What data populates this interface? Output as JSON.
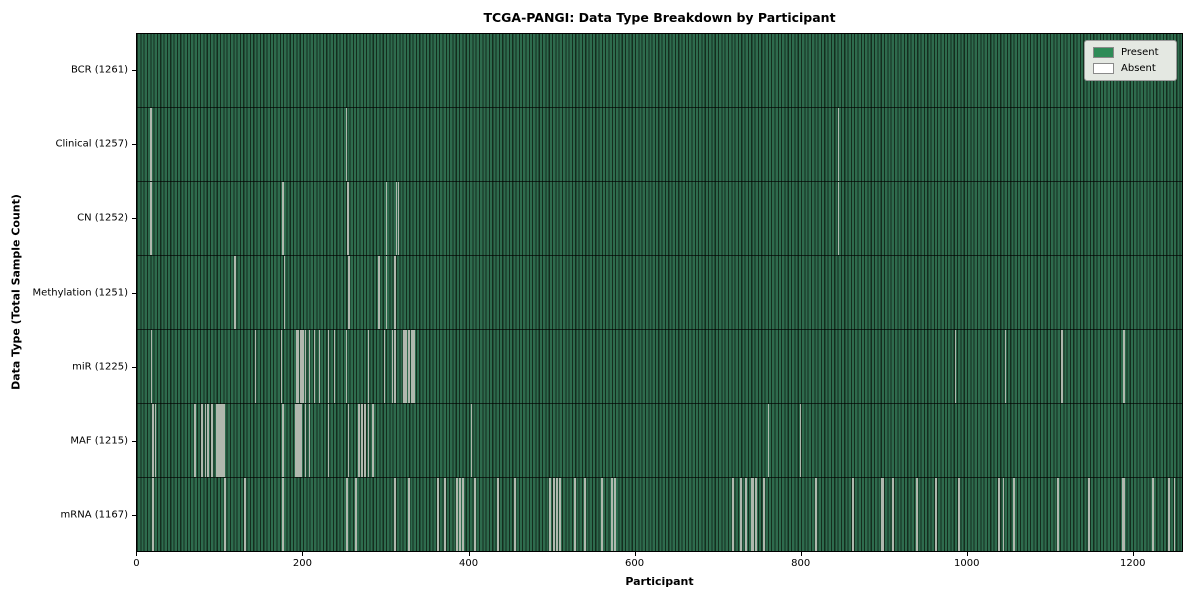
{
  "chart_data": {
    "type": "heatmap",
    "title": "TCGA-PANGI: Data Type Breakdown by Participant",
    "xlabel": "Participant",
    "ylabel": "Data Type (Total Sample Count)",
    "x_ticks": [
      0,
      200,
      400,
      600,
      800,
      1000,
      1200
    ],
    "x_range": [
      -0.5,
      1260.5
    ],
    "total_participants": 1261,
    "grid": false,
    "legend_position": "upper right",
    "legend": [
      {
        "label": "Present",
        "color": "#2e8b57"
      },
      {
        "label": "Absent",
        "color": "#ffffff"
      }
    ],
    "colors": {
      "bar_fill": "#2e6b4d",
      "bar_edge": "#142e1e",
      "absent_line": "#b0b8ae",
      "plot_border": "#000000"
    },
    "rows": [
      {
        "data_type": "BCR",
        "present_count": 1261,
        "label": "BCR (1261)",
        "absent_participants": []
      },
      {
        "data_type": "Clinical",
        "present_count": 1257,
        "label": "Clinical (1257)",
        "absent_participants": [
          15,
          16,
          252,
          845
        ]
      },
      {
        "data_type": "CN",
        "present_count": 1252,
        "label": "CN (1252)",
        "absent_participants": [
          15,
          16,
          175,
          253,
          254,
          300,
          312,
          314,
          845
        ]
      },
      {
        "data_type": "Methylation",
        "present_count": 1251,
        "label": "Methylation (1251)",
        "absent_participants": [
          117,
          118,
          177,
          254,
          255,
          290,
          291,
          300,
          310,
          311
        ]
      },
      {
        "data_type": "miR",
        "present_count": 1225,
        "label": "miR (1225)",
        "absent_participants": [
          16,
          142,
          173,
          191,
          192,
          193,
          196,
          197,
          199,
          200,
          202,
          207,
          213,
          219,
          230,
          237,
          252,
          278,
          297,
          307,
          310,
          320,
          321,
          323,
          324,
          326,
          327,
          330,
          331,
          333,
          334,
          986,
          1047,
          1115,
          1189,
          1190
        ]
      },
      {
        "data_type": "MAF",
        "present_count": 1215,
        "label": "MAF (1215)",
        "absent_participants": [
          18,
          21,
          68,
          69,
          77,
          78,
          81,
          84,
          85,
          89,
          90,
          95,
          96,
          97,
          98,
          99,
          100,
          101,
          102,
          103,
          104,
          175,
          190,
          191,
          192,
          193,
          194,
          195,
          196,
          197,
          202,
          207,
          230,
          254,
          266,
          267,
          270,
          271,
          274,
          275,
          278,
          283,
          284,
          402,
          761,
          799
        ]
      },
      {
        "data_type": "mRNA",
        "present_count": 1167,
        "label": "mRNA (1167)",
        "absent_participants": [
          17,
          18,
          105,
          106,
          129,
          130,
          175,
          176,
          252,
          253,
          262,
          263,
          310,
          311,
          326,
          327,
          362,
          363,
          370,
          371,
          384,
          385,
          388,
          389,
          392,
          393,
          406,
          407,
          434,
          435,
          454,
          455,
          497,
          498,
          501,
          502,
          505,
          506,
          509,
          510,
          527,
          528,
          539,
          540,
          559,
          560,
          571,
          572,
          575,
          576,
          717,
          718,
          727,
          728,
          733,
          734,
          741,
          742,
          745,
          746,
          755,
          756,
          818,
          819,
          862,
          863,
          897,
          898,
          899,
          910,
          911,
          940,
          941,
          962,
          963,
          990,
          991,
          1038,
          1039,
          1044,
          1056,
          1057,
          1110,
          1111,
          1147,
          1148,
          1188,
          1189,
          1190,
          1224,
          1225,
          1244,
          1245,
          1251
        ]
      }
    ]
  }
}
